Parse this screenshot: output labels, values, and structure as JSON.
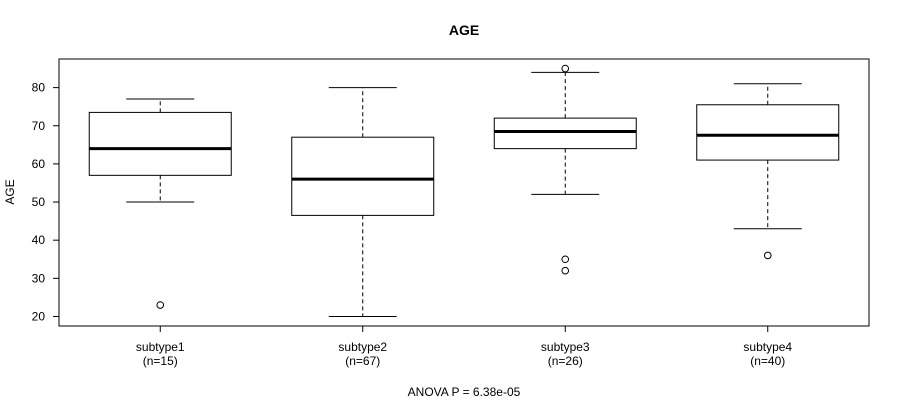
{
  "chart_data": {
    "type": "boxplot",
    "title": "AGE",
    "ylabel": "AGE",
    "xlabel": "",
    "ylim": [
      17.5,
      87.5
    ],
    "yticks": [
      20,
      30,
      40,
      50,
      60,
      70,
      80
    ],
    "categories": [
      {
        "name": "subtype1",
        "count_label": "(n=15)"
      },
      {
        "name": "subtype2",
        "count_label": "(n=67)"
      },
      {
        "name": "subtype3",
        "count_label": "(n=26)"
      },
      {
        "name": "subtype4",
        "count_label": "(n=40)"
      }
    ],
    "boxes": [
      {
        "whisker_low": 50,
        "q1": 57,
        "median": 64,
        "q3": 73.5,
        "whisker_high": 77,
        "outliers": [
          23
        ]
      },
      {
        "whisker_low": 20,
        "q1": 46.5,
        "median": 56,
        "q3": 67,
        "whisker_high": 80,
        "outliers": []
      },
      {
        "whisker_low": 52,
        "q1": 64,
        "median": 68.5,
        "q3": 72,
        "whisker_high": 84,
        "outliers": [
          85,
          35,
          32
        ]
      },
      {
        "whisker_low": 43,
        "q1": 61,
        "median": 67.5,
        "q3": 75.5,
        "whisker_high": 81,
        "outliers": [
          36
        ]
      }
    ],
    "footnote": "ANOVA P = 6.38e-05",
    "grid": false,
    "legend": "none"
  }
}
